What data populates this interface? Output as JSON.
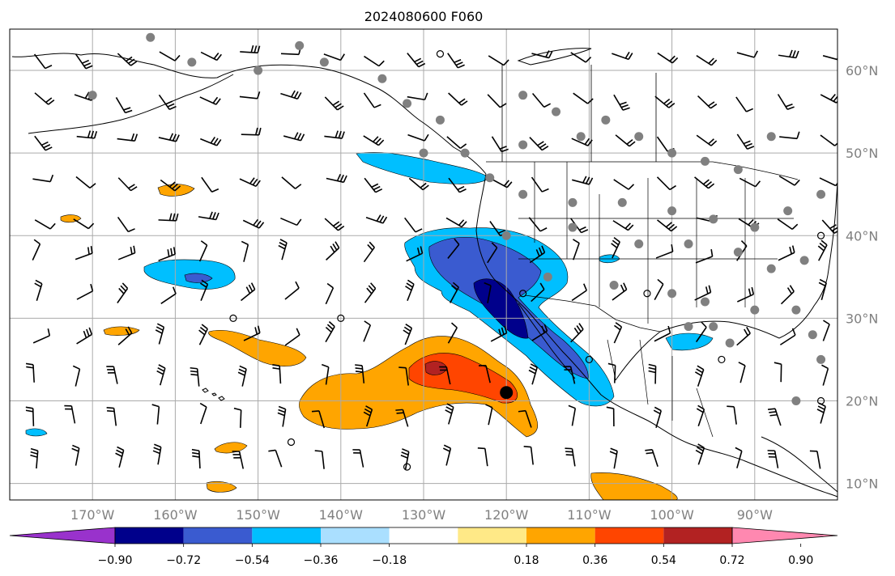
{
  "title": "2024080600 F060",
  "map": {
    "lon_range": [
      -180,
      -80
    ],
    "lat_range": [
      8,
      65
    ],
    "lon_gridlines": [
      -180,
      -170,
      -160,
      -150,
      -140,
      -130,
      -120,
      -110,
      -100,
      -90
    ],
    "lat_gridlines": [
      10,
      20,
      30,
      40,
      50,
      60
    ],
    "lon_labels": [
      "170°W",
      "160°W",
      "150°W",
      "140°W",
      "130°W",
      "120°W",
      "110°W",
      "100°W",
      "90°W"
    ],
    "lat_labels": [
      "10°N",
      "20°N",
      "30°N",
      "40°N",
      "50°N",
      "60°N"
    ],
    "label_color": "#808080"
  },
  "colorbar": {
    "ticks": [
      "−0.90",
      "−0.72",
      "−0.54",
      "−0.36",
      "−0.18",
      "0.18",
      "0.36",
      "0.54",
      "0.72",
      "0.90"
    ],
    "colors": [
      "#9932cc",
      "#00008b",
      "#3a5bd0",
      "#00bfff",
      "#aadfff",
      "#ffffff",
      "#ffe987",
      "#ffa500",
      "#ff4500",
      "#b22222",
      "#ff88b0"
    ]
  },
  "field_colors": {
    "neg_deep": "#00008b",
    "neg_mid": "#3a5bd0",
    "neg_light": "#00bfff",
    "neg_pale": "#aadfff",
    "pos_pale": "#ffe987",
    "pos_light": "#ffa500",
    "pos_mid": "#ff4500",
    "pos_deep": "#b22222"
  },
  "marker": {
    "lon": -120,
    "lat": 21
  }
}
